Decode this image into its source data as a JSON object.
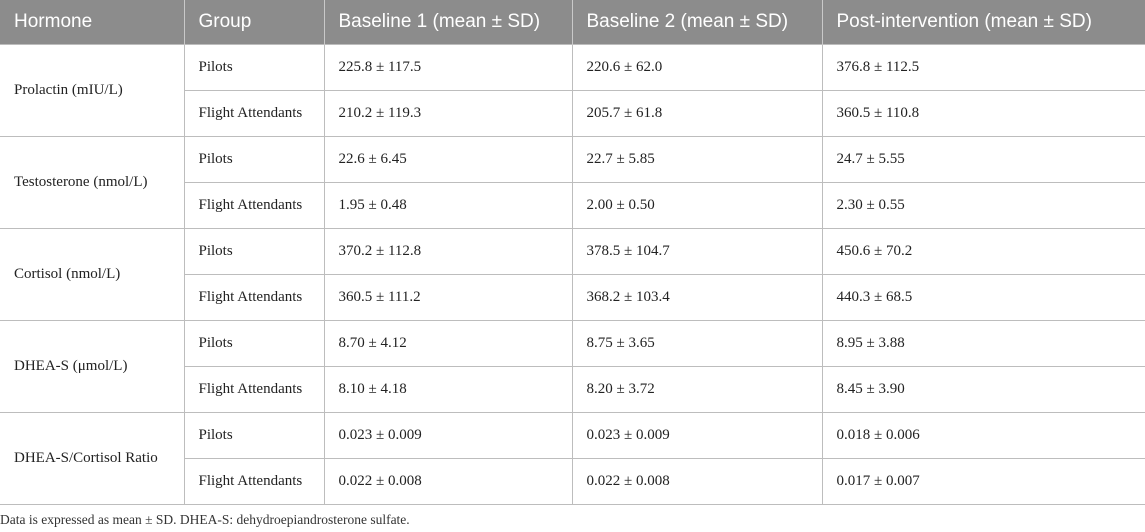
{
  "table": {
    "headers": [
      "Hormone",
      "Group",
      "Baseline 1 (mean ± SD)",
      "Baseline 2 (mean ± SD)",
      "Post-intervention (mean ± SD)"
    ],
    "rows": [
      {
        "hormone": "Prolactin (mIU/L)",
        "groups": [
          {
            "group": "Pilots",
            "baseline1": "225.8 ± 117.5",
            "baseline2": "220.6 ± 62.0",
            "post": "376.8 ± 112.5"
          },
          {
            "group": "Flight Attendants",
            "baseline1": "210.2 ± 119.3",
            "baseline2": "205.7 ± 61.8",
            "post": "360.5 ± 110.8"
          }
        ]
      },
      {
        "hormone": "Testosterone (nmol/L)",
        "groups": [
          {
            "group": "Pilots",
            "baseline1": "22.6 ± 6.45",
            "baseline2": "22.7 ± 5.85",
            "post": "24.7 ± 5.55"
          },
          {
            "group": "Flight Attendants",
            "baseline1": "1.95 ± 0.48",
            "baseline2": "2.00 ± 0.50",
            "post": "2.30 ± 0.55"
          }
        ]
      },
      {
        "hormone": "Cortisol (nmol/L)",
        "groups": [
          {
            "group": "Pilots",
            "baseline1": "370.2 ± 112.8",
            "baseline2": "378.5 ± 104.7",
            "post": "450.6 ± 70.2"
          },
          {
            "group": "Flight Attendants",
            "baseline1": "360.5 ± 111.2",
            "baseline2": "368.2 ± 103.4",
            "post": "440.3 ± 68.5"
          }
        ]
      },
      {
        "hormone": "DHEA-S (μmol/L)",
        "groups": [
          {
            "group": "Pilots",
            "baseline1": "8.70 ± 4.12",
            "baseline2": "8.75 ± 3.65",
            "post": "8.95 ± 3.88"
          },
          {
            "group": "Flight Attendants",
            "baseline1": "8.10 ± 4.18",
            "baseline2": "8.20 ± 3.72",
            "post": "8.45 ± 3.90"
          }
        ]
      },
      {
        "hormone": "DHEA-S/Cortisol Ratio",
        "groups": [
          {
            "group": "Pilots",
            "baseline1": "0.023 ± 0.009",
            "baseline2": "0.023 ± 0.009",
            "post": "0.018 ± 0.006"
          },
          {
            "group": "Flight Attendants",
            "baseline1": "0.022 ± 0.008",
            "baseline2": "0.022 ± 0.008",
            "post": "0.017 ± 0.007"
          }
        ]
      }
    ]
  },
  "footnote": "Data is expressed as mean ± SD. DHEA-S: dehydroepiandrosterone sulfate."
}
